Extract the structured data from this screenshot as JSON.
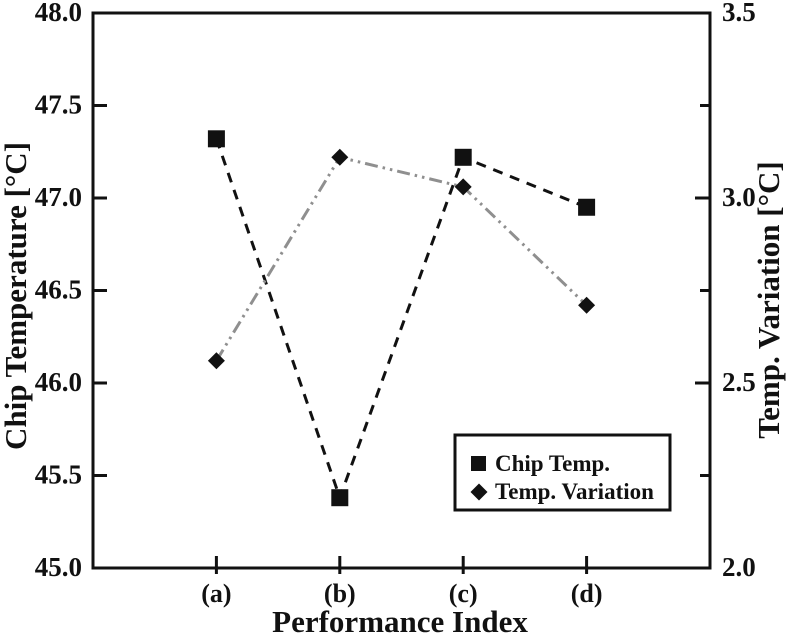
{
  "figure": {
    "background": "#ffffff",
    "frame_color": "#111111"
  },
  "chart_data": {
    "type": "line",
    "title": "",
    "xlabel": "Performance Index",
    "categories": [
      "(a)",
      "(b)",
      "(c)",
      "(d)"
    ],
    "grid": false,
    "left_axis": {
      "label": "Chip Temperature [°C]",
      "min": 45.0,
      "max": 48.0,
      "tick_step": 0.5,
      "label_step": 0.5,
      "decimals": 1,
      "tick_labels": [
        "48.0",
        "47.5",
        "47.0",
        "46.5",
        "46.0",
        "45.5",
        "45.0"
      ]
    },
    "right_axis": {
      "label": "Temp. Variation [°C]",
      "min": 2.0,
      "max": 3.5,
      "tick_step": 0.25,
      "label_step": 0.5,
      "decimals": 1,
      "tick_labels": [
        "3.5",
        "3.0",
        "2.5",
        "2.0"
      ]
    },
    "series": [
      {
        "name": "Chip Temp.",
        "axis": "left",
        "marker": "square",
        "line_style": "dashed",
        "line_color": "#111111",
        "marker_color": "#111111",
        "values": [
          47.32,
          45.38,
          47.22,
          46.95
        ]
      },
      {
        "name": "Temp. Variation",
        "axis": "right",
        "marker": "diamond",
        "line_style": "dash-dot-dot",
        "line_color": "#8f8f8f",
        "marker_color": "#111111",
        "values": [
          2.56,
          3.11,
          3.03,
          2.71
        ]
      }
    ],
    "legend": {
      "position": "lower-right",
      "items": [
        "Chip Temp.",
        "Temp. Variation"
      ]
    }
  }
}
